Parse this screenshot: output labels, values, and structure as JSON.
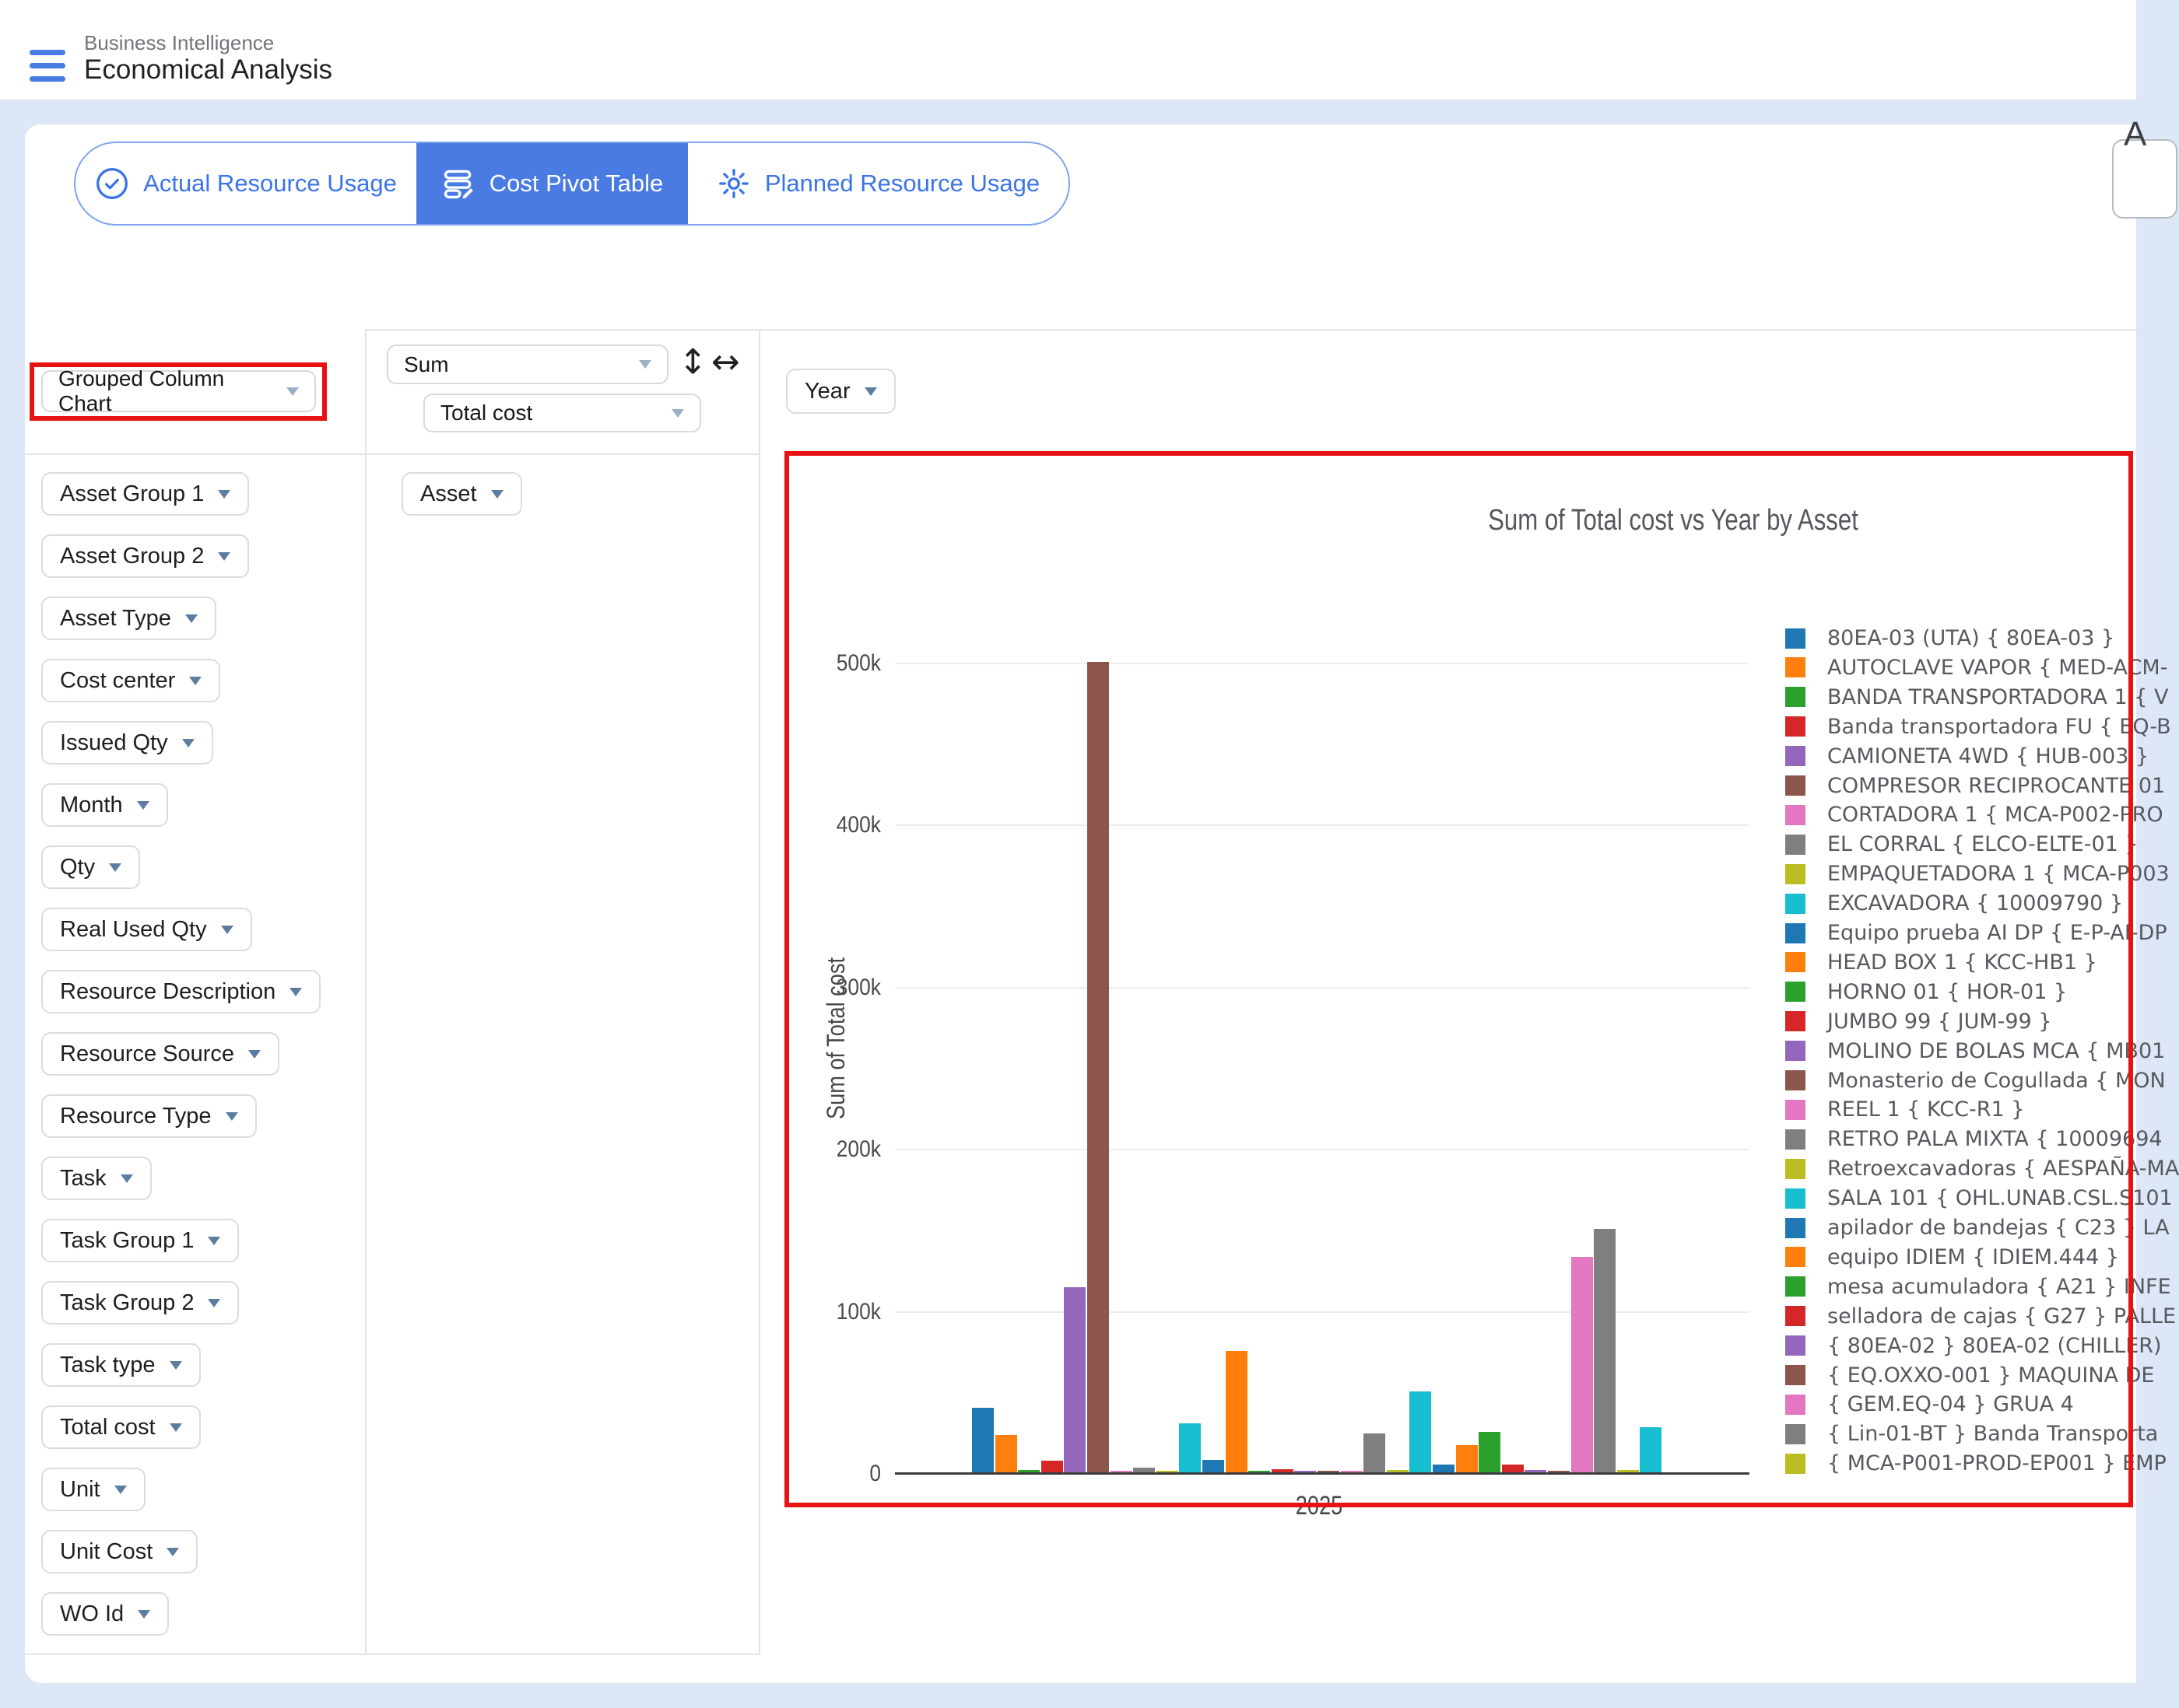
{
  "header": {
    "app_title": "Business Intelligence",
    "page_title": "Economical Analysis"
  },
  "tabs": {
    "accent": "#4a7be2",
    "items": [
      {
        "label": "Actual Resource Usage",
        "icon": "check-circle-icon",
        "active": false
      },
      {
        "label": "Cost Pivot Table",
        "icon": "pivot-edit-icon",
        "active": true
      },
      {
        "label": "Planned Resource Usage",
        "icon": "gear-icon",
        "active": false
      }
    ]
  },
  "pivot": {
    "chart_type": {
      "value": "Grouped Column Chart"
    },
    "aggregator": {
      "value": "Sum"
    },
    "measure": {
      "value": "Total cost"
    },
    "column_field": {
      "value": "Year"
    },
    "row_field": {
      "value": "Asset"
    },
    "resize_vertical_glyph": "↕",
    "resize_horizontal_glyph": "↔",
    "available_fields": [
      "Asset Group 1",
      "Asset Group 2",
      "Asset Type",
      "Cost center",
      "Issued Qty",
      "Month",
      "Qty",
      "Real Used Qty",
      "Resource Description",
      "Resource Source",
      "Resource Type",
      "Task",
      "Task Group 1",
      "Task Group 2",
      "Task type",
      "Total cost",
      "Unit",
      "Unit Cost",
      "WO Id"
    ]
  },
  "corner_widget": {
    "label": "A"
  },
  "annotation": {
    "color": "#e81212"
  },
  "chart_data": {
    "type": "bar",
    "title": "Sum of Total cost vs Year by Asset",
    "ylabel": "Sum of Total cost",
    "xlabel": "",
    "categories": [
      "2025"
    ],
    "ylim": [
      0,
      520000
    ],
    "grid": "horizontal",
    "legend_position": "right",
    "palette": [
      "#1f77b4",
      "#ff7f0e",
      "#2ca02c",
      "#d62728",
      "#9467bd",
      "#8c564b",
      "#e377c2",
      "#7f7f7f",
      "#bcbd22",
      "#17becf"
    ],
    "yticks": [
      {
        "label": "0",
        "value": 0
      },
      {
        "label": "100k",
        "value": 100000
      },
      {
        "label": "200k",
        "value": 200000
      },
      {
        "label": "300k",
        "value": 300000
      },
      {
        "label": "400k",
        "value": 400000
      },
      {
        "label": "500k",
        "value": 500000
      }
    ],
    "series": [
      {
        "name": "80EA-03 (UTA) { 80EA-03 }",
        "value": 40000
      },
      {
        "name": "AUTOCLAVE VAPOR { MED-ACM-",
        "value": 23000
      },
      {
        "name": "BANDA TRANSPORTADORA 1 { V",
        "value": 1300
      },
      {
        "name": "Banda transportadora FU { EQ-B",
        "value": 7000
      },
      {
        "name": "CAMIONETA 4WD { HUB-003 }",
        "value": 114000
      },
      {
        "name": "COMPRESOR RECIPROCANTE 01",
        "value": 500000
      },
      {
        "name": "CORTADORA 1 { MCA-P002-PRO",
        "value": 1000
      },
      {
        "name": "EL CORRAL { ELCO-ELTE-01 }",
        "value": 3000
      },
      {
        "name": "EMPAQUETADORA 1 { MCA-P003",
        "value": 1000
      },
      {
        "name": "EXCAVADORA { 10009790 }",
        "value": 30000
      },
      {
        "name": "Equipo prueba AI DP { E-P-AI-DP",
        "value": 7500
      },
      {
        "name": "HEAD BOX 1 { KCC-HB1 }",
        "value": 75000
      },
      {
        "name": "HORNO 01 { HOR-01 }",
        "value": 1000
      },
      {
        "name": "JUMBO 99 { JUM-99 }",
        "value": 2000
      },
      {
        "name": "MOLINO DE BOLAS MCA { MB01",
        "value": 1000
      },
      {
        "name": "Monasterio de Cogullada { MON",
        "value": 800
      },
      {
        "name": "REEL 1 { KCC-R1 }",
        "value": 800
      },
      {
        "name": "RETRO PALA MIXTA { 10009694",
        "value": 24000
      },
      {
        "name": "Retroexcavadoras { AESPAÑA-MA",
        "value": 1300
      },
      {
        "name": "SALA 101 { OHL.UNAB.CSL.S101",
        "value": 50000
      },
      {
        "name": "apilador de bandejas { C23 } LA",
        "value": 5000
      },
      {
        "name": "equipo IDIEM { IDIEM.444 }",
        "value": 17000
      },
      {
        "name": "mesa acumuladora { A21 } INFE",
        "value": 25000
      },
      {
        "name": "selladora de cajas { G27 } PALLE",
        "value": 5000
      },
      {
        "name": "{ 80EA-02 } 80EA-02 (CHILLER)",
        "value": 1300
      },
      {
        "name": "{ EQ.OXXO-001 } MAQUINA DE",
        "value": 1000
      },
      {
        "name": "{ GEM.EQ-04 } GRUA 4",
        "value": 133000
      },
      {
        "name": "{ Lin-01-BT } Banda Transporta",
        "value": 150000
      },
      {
        "name": "{ MCA-P001-PROD-EP001 } EMP",
        "value": 1300
      },
      {
        "name": "",
        "value": 28000
      }
    ]
  }
}
